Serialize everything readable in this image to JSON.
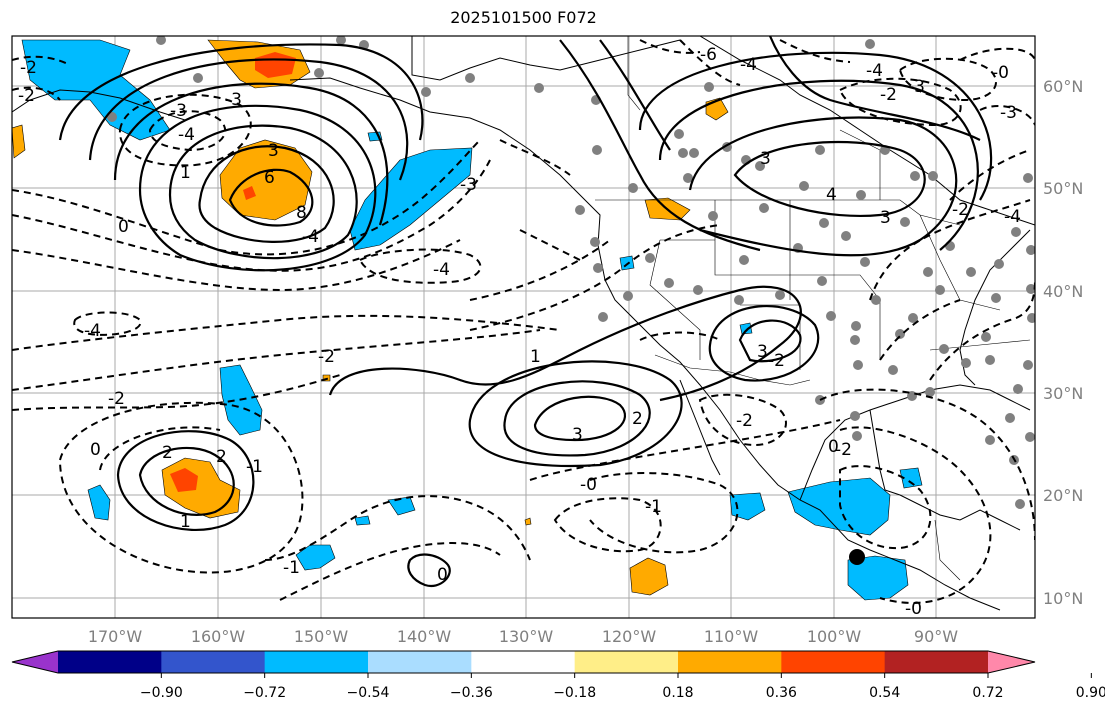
{
  "title": "2025101500 F072",
  "longitude_ticks": [
    "170°W",
    "160°W",
    "150°W",
    "140°W",
    "130°W",
    "120°W",
    "110°W",
    "100°W",
    "90°W"
  ],
  "latitude_ticks": [
    "10°N",
    "20°N",
    "30°N",
    "40°N",
    "50°N",
    "60°N"
  ],
  "colorbar": {
    "ticks": [
      "−0.90",
      "−0.72",
      "−0.54",
      "−0.36",
      "−0.18",
      "0.18",
      "0.36",
      "0.54",
      "0.72",
      "0.90"
    ],
    "colors": [
      "#9933cc",
      "#000088",
      "#3355cc",
      "#00bbff",
      "#aaddff",
      "#ffffff",
      "#ffee88",
      "#ffaa00",
      "#ff4400",
      "#b22222",
      "#ff88aa"
    ]
  },
  "contour_labels": [
    {
      "text": "-2"
    },
    {
      "text": "-2"
    },
    {
      "text": "-3"
    },
    {
      "text": "-4"
    },
    {
      "text": "-3"
    },
    {
      "text": "0"
    },
    {
      "text": "1"
    },
    {
      "text": "3"
    },
    {
      "text": "6"
    },
    {
      "text": "8"
    },
    {
      "text": "-4"
    },
    {
      "text": "-2"
    },
    {
      "text": "-3"
    },
    {
      "text": "-4"
    },
    {
      "text": "-4"
    },
    {
      "text": "-2"
    },
    {
      "text": "0"
    },
    {
      "text": "2"
    },
    {
      "text": "2"
    },
    {
      "text": "1"
    },
    {
      "text": "-1"
    },
    {
      "text": "0"
    },
    {
      "text": "-1"
    },
    {
      "text": "3"
    },
    {
      "text": "2"
    },
    {
      "text": "1"
    },
    {
      "text": "-0"
    },
    {
      "text": "-1"
    },
    {
      "text": "-2"
    },
    {
      "text": "-2"
    },
    {
      "text": "3"
    },
    {
      "text": "3"
    },
    {
      "text": "-2"
    },
    {
      "text": "0"
    },
    {
      "text": "-0"
    },
    {
      "text": "-6"
    },
    {
      "text": "-4"
    },
    {
      "text": "-2"
    },
    {
      "text": "-3"
    },
    {
      "text": "4"
    },
    {
      "text": "-4"
    },
    {
      "text": "3"
    },
    {
      "text": "-3"
    },
    {
      "text": "-2"
    },
    {
      "text": "-0"
    },
    {
      "text": "-4"
    }
  ]
}
